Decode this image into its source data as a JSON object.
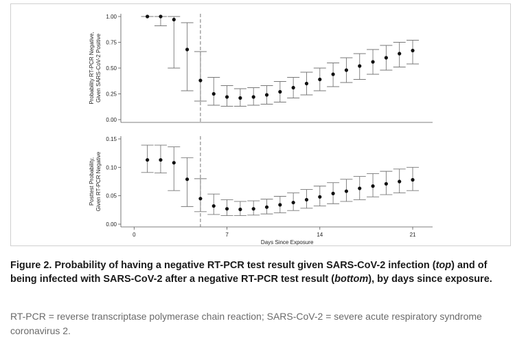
{
  "chart_data": [
    {
      "type": "scatter",
      "panel": "top",
      "ylabel_line1": "Probability RT-PCR Negative,",
      "ylabel_line2": "Given SARS-CoV-2 Positive",
      "ylim": [
        0,
        1
      ],
      "yticks": [
        "0.00",
        "0.25",
        "0.50",
        "0.75",
        "1.00"
      ],
      "ytick_values": [
        0,
        0.25,
        0.5,
        0.75,
        1.0
      ],
      "reference_line_x": 5,
      "x": [
        1,
        2,
        3,
        4,
        5,
        6,
        7,
        8,
        9,
        10,
        11,
        12,
        13,
        14,
        15,
        16,
        17,
        18,
        19,
        20,
        21
      ],
      "y": [
        1.0,
        1.0,
        0.97,
        0.68,
        0.38,
        0.25,
        0.22,
        0.21,
        0.22,
        0.24,
        0.27,
        0.31,
        0.35,
        0.39,
        0.44,
        0.48,
        0.52,
        0.56,
        0.6,
        0.64,
        0.67
      ],
      "lower": [
        1.0,
        0.91,
        0.5,
        0.28,
        0.18,
        0.14,
        0.13,
        0.13,
        0.14,
        0.15,
        0.17,
        0.21,
        0.24,
        0.28,
        0.32,
        0.36,
        0.39,
        0.44,
        0.48,
        0.51,
        0.54
      ],
      "upper": [
        1.0,
        1.0,
        1.0,
        0.94,
        0.66,
        0.41,
        0.33,
        0.3,
        0.31,
        0.33,
        0.37,
        0.41,
        0.46,
        0.5,
        0.55,
        0.6,
        0.64,
        0.68,
        0.72,
        0.75,
        0.77
      ]
    },
    {
      "type": "scatter",
      "panel": "bottom",
      "ylabel_line1": "Posttest Probability,",
      "ylabel_line2": "Given RT-PCR Negative",
      "xlabel": "Days Since Exposure",
      "ylim": [
        0,
        0.15
      ],
      "yticks": [
        "0.00",
        "0.05",
        "0.10",
        "0.15"
      ],
      "ytick_values": [
        0,
        0.05,
        0.1,
        0.15
      ],
      "xlim": [
        -1,
        22.5
      ],
      "xticks": [
        "0",
        "7",
        "14",
        "21"
      ],
      "xtick_values": [
        0,
        7,
        14,
        21
      ],
      "reference_line_x": 5,
      "x": [
        1,
        2,
        3,
        4,
        5,
        6,
        7,
        8,
        9,
        10,
        11,
        12,
        13,
        14,
        15,
        16,
        17,
        18,
        19,
        20,
        21
      ],
      "y": [
        0.113,
        0.113,
        0.108,
        0.079,
        0.045,
        0.032,
        0.027,
        0.026,
        0.027,
        0.03,
        0.034,
        0.038,
        0.043,
        0.048,
        0.054,
        0.058,
        0.063,
        0.067,
        0.071,
        0.075,
        0.078
      ],
      "lower": [
        0.091,
        0.09,
        0.059,
        0.031,
        0.022,
        0.017,
        0.015,
        0.015,
        0.016,
        0.018,
        0.02,
        0.024,
        0.028,
        0.032,
        0.036,
        0.04,
        0.043,
        0.048,
        0.052,
        0.055,
        0.059
      ],
      "upper": [
        0.139,
        0.139,
        0.136,
        0.117,
        0.08,
        0.053,
        0.043,
        0.04,
        0.041,
        0.044,
        0.049,
        0.055,
        0.061,
        0.067,
        0.073,
        0.079,
        0.084,
        0.089,
        0.093,
        0.097,
        0.1
      ]
    }
  ],
  "caption": {
    "part1": "Figure 2. Probability of having a negative RT-PCR test result given SARS-CoV-2 infection (",
    "em1": "top",
    "part2": ") and of being infected with SARS-CoV-2 after a negative RT-PCR test result (",
    "em2": "bottom",
    "part3": "), by days since exposure."
  },
  "footnote": "RT-PCR = reverse transcriptase polymerase chain reaction; SARS-CoV-2 = severe acute respiratory syndrome coronavirus 2."
}
